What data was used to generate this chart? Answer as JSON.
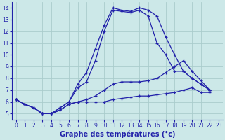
{
  "title": "Graphe des températures (°c)",
  "background_color": "#cce8e8",
  "grid_color": "#aacccc",
  "line_color": "#2222aa",
  "xlim": [
    -0.5,
    23.5
  ],
  "ylim": [
    4.5,
    14.5
  ],
  "yticks": [
    5,
    6,
    7,
    8,
    9,
    10,
    11,
    12,
    13,
    14
  ],
  "xticks": [
    0,
    1,
    2,
    3,
    4,
    5,
    6,
    7,
    8,
    9,
    10,
    11,
    12,
    13,
    14,
    15,
    16,
    17,
    18,
    19,
    20,
    21,
    22,
    23
  ],
  "series": [
    {
      "x": [
        0,
        1,
        2,
        3,
        4,
        5,
        6,
        7,
        8,
        9,
        10,
        11,
        12,
        13,
        14,
        15,
        16,
        17,
        18,
        19,
        20,
        21,
        22
      ],
      "y": [
        6.2,
        5.8,
        5.5,
        5.0,
        5.0,
        5.3,
        5.8,
        6.0,
        6.0,
        6.0,
        6.0,
        6.2,
        6.3,
        6.4,
        6.5,
        6.5,
        6.6,
        6.7,
        6.8,
        7.0,
        7.2,
        6.8,
        6.8
      ]
    },
    {
      "x": [
        0,
        1,
        2,
        3,
        4,
        5,
        6,
        7,
        8,
        9,
        10,
        11,
        12,
        13,
        14,
        15,
        16,
        17,
        18,
        19,
        20,
        21,
        22
      ],
      "y": [
        6.2,
        5.8,
        5.5,
        5.0,
        5.0,
        5.3,
        5.8,
        6.0,
        6.2,
        6.5,
        7.0,
        7.5,
        7.7,
        7.7,
        7.7,
        7.8,
        8.0,
        8.5,
        9.0,
        9.5,
        8.6,
        7.8,
        7.0
      ]
    },
    {
      "x": [
        0,
        1,
        2,
        3,
        4,
        5,
        6,
        7,
        8,
        9,
        10,
        11,
        12,
        13,
        14,
        15,
        16,
        17,
        18,
        19,
        20,
        21,
        22
      ],
      "y": [
        6.2,
        5.8,
        5.5,
        5.0,
        5.0,
        5.5,
        6.0,
        7.2,
        7.7,
        9.5,
        12.0,
        13.8,
        13.7,
        13.6,
        13.8,
        13.3,
        11.0,
        10.0,
        8.6,
        8.6,
        8.0,
        7.5,
        7.0
      ]
    },
    {
      "x": [
        0,
        1,
        2,
        3,
        4,
        5,
        6,
        7,
        8,
        9,
        10,
        11,
        12,
        13,
        14,
        15,
        16,
        17,
        18,
        19,
        20,
        21,
        22
      ],
      "y": [
        6.2,
        5.8,
        5.5,
        5.0,
        5.0,
        5.5,
        6.0,
        7.5,
        8.5,
        10.5,
        12.5,
        14.0,
        13.8,
        13.7,
        14.0,
        13.8,
        13.3,
        11.5,
        10.0,
        8.6,
        8.0,
        7.5,
        7.0
      ]
    }
  ],
  "xlabel_fontsize": 7,
  "tick_fontsize": 5.5
}
